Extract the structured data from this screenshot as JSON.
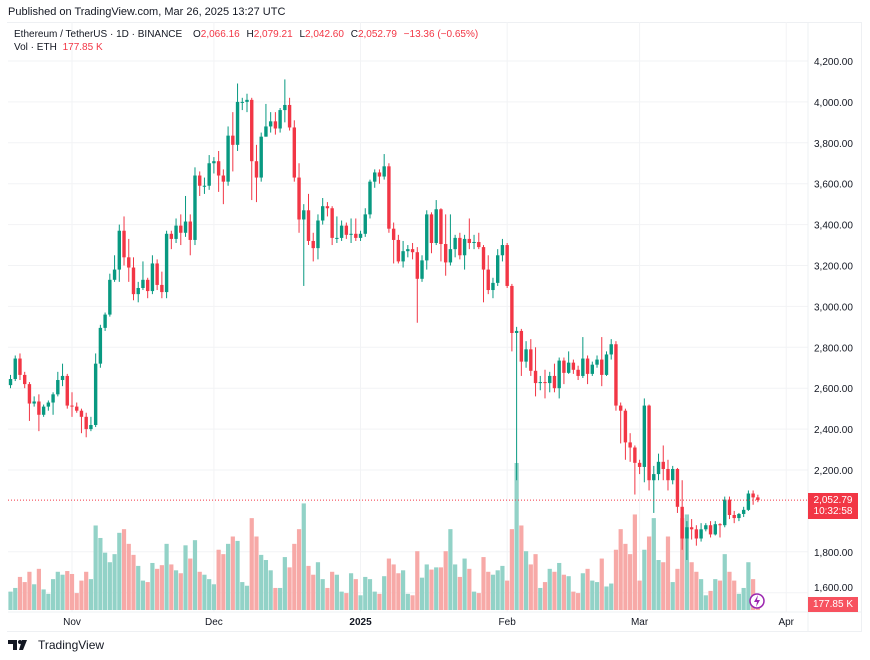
{
  "published": "Published on TradingView.com, Mar 26, 2025 13:27 UTC",
  "legend": {
    "symbol": "Ethereum / TetherUS · 1D · BINANCE",
    "open_label": "O",
    "open": "2,066.16",
    "high_label": "H",
    "high": "2,079.21",
    "low_label": "L",
    "low": "2,042.60",
    "close_label": "C",
    "close": "2,052.79",
    "change": "−13.36 (−0.65%)",
    "vol_label": "Vol · ETH",
    "vol": "177.85 K"
  },
  "price_badge": {
    "price": "2,052.79",
    "countdown": "10:32:58"
  },
  "volume_badge": "177.85 K",
  "footer_brand": "TradingView",
  "colors": {
    "up": "#089981",
    "down": "#f23645",
    "up_volume": "#92d2c7",
    "down_volume": "#f7a9a7",
    "indicator": "#9c27b0"
  },
  "chart_data": {
    "type": "candlestick",
    "title": "Ethereum / TetherUS · 1D · BINANCE",
    "y_ticks": [
      "4,200.00",
      "4,000.00",
      "3,800.00",
      "3,600.00",
      "3,400.00",
      "3,200.00",
      "3,000.00",
      "2,800.00",
      "2,600.00",
      "2,400.00",
      "2,200.00",
      "1,800.00",
      "1,600.00"
    ],
    "y_tick_values": [
      4200,
      4000,
      3800,
      3600,
      3400,
      3200,
      3000,
      2800,
      2600,
      2400,
      2200,
      1800,
      1600
    ],
    "ylim": [
      1600,
      4200
    ],
    "x_ticks": [
      {
        "label": "Nov",
        "date": "2024-11-01",
        "bold": false
      },
      {
        "label": "Dec",
        "date": "2024-12-01",
        "bold": false
      },
      {
        "label": "2025",
        "date": "2025-01-01",
        "bold": true
      },
      {
        "label": "Feb",
        "date": "2025-02-01",
        "bold": false
      },
      {
        "label": "Mar",
        "date": "2025-03-01",
        "bold": false
      },
      {
        "label": "Apr",
        "date": "2025-04-01",
        "bold": false
      }
    ],
    "current_price": 2052.79,
    "columns": [
      "date",
      "open",
      "high",
      "low",
      "close",
      "volume_k"
    ],
    "candles": [
      [
        "2024-10-19",
        2615,
        2665,
        2600,
        2645,
        250
      ],
      [
        "2024-10-20",
        2645,
        2760,
        2635,
        2745,
        300
      ],
      [
        "2024-10-21",
        2745,
        2770,
        2640,
        2665,
        450
      ],
      [
        "2024-10-22",
        2665,
        2680,
        2600,
        2620,
        380
      ],
      [
        "2024-10-23",
        2620,
        2630,
        2440,
        2525,
        520
      ],
      [
        "2024-10-24",
        2525,
        2560,
        2510,
        2535,
        350
      ],
      [
        "2024-10-25",
        2535,
        2570,
        2390,
        2470,
        560
      ],
      [
        "2024-10-26",
        2470,
        2520,
        2460,
        2510,
        280
      ],
      [
        "2024-10-27",
        2510,
        2540,
        2490,
        2530,
        220
      ],
      [
        "2024-10-28",
        2530,
        2580,
        2470,
        2570,
        420
      ],
      [
        "2024-10-29",
        2570,
        2680,
        2560,
        2640,
        520
      ],
      [
        "2024-10-30",
        2640,
        2720,
        2610,
        2660,
        480
      ],
      [
        "2024-10-31",
        2660,
        2670,
        2500,
        2515,
        530
      ],
      [
        "2024-11-01",
        2515,
        2580,
        2460,
        2510,
        490
      ],
      [
        "2024-11-02",
        2510,
        2530,
        2480,
        2490,
        230
      ],
      [
        "2024-11-03",
        2490,
        2500,
        2380,
        2460,
        400
      ],
      [
        "2024-11-04",
        2460,
        2480,
        2360,
        2400,
        520
      ],
      [
        "2024-11-05",
        2400,
        2460,
        2390,
        2420,
        420
      ],
      [
        "2024-11-06",
        2420,
        2770,
        2410,
        2720,
        1150
      ],
      [
        "2024-11-07",
        2720,
        2910,
        2700,
        2895,
        980
      ],
      [
        "2024-11-08",
        2895,
        2970,
        2880,
        2960,
        780
      ],
      [
        "2024-11-09",
        2960,
        3160,
        2950,
        3130,
        650
      ],
      [
        "2024-11-10",
        3130,
        3250,
        3120,
        3180,
        760
      ],
      [
        "2024-11-11",
        3180,
        3400,
        3120,
        3370,
        1050
      ],
      [
        "2024-11-12",
        3370,
        3440,
        3200,
        3240,
        1100
      ],
      [
        "2024-11-13",
        3240,
        3330,
        3120,
        3190,
        900
      ],
      [
        "2024-11-14",
        3190,
        3240,
        3030,
        3060,
        750
      ],
      [
        "2024-11-15",
        3060,
        3120,
        3020,
        3090,
        600
      ],
      [
        "2024-11-16",
        3090,
        3220,
        3080,
        3130,
        400
      ],
      [
        "2024-11-17",
        3130,
        3140,
        3040,
        3075,
        380
      ],
      [
        "2024-11-18",
        3075,
        3250,
        3060,
        3210,
        640
      ],
      [
        "2024-11-19",
        3210,
        3230,
        3080,
        3105,
        560
      ],
      [
        "2024-11-20",
        3105,
        3170,
        3040,
        3070,
        610
      ],
      [
        "2024-11-21",
        3070,
        3370,
        3040,
        3355,
        900
      ],
      [
        "2024-11-22",
        3355,
        3370,
        3280,
        3330,
        620
      ],
      [
        "2024-11-23",
        3330,
        3430,
        3310,
        3395,
        540
      ],
      [
        "2024-11-24",
        3395,
        3450,
        3300,
        3360,
        500
      ],
      [
        "2024-11-25",
        3360,
        3540,
        3340,
        3415,
        880
      ],
      [
        "2024-11-26",
        3415,
        3450,
        3250,
        3325,
        700
      ],
      [
        "2024-11-27",
        3325,
        3680,
        3300,
        3640,
        950
      ],
      [
        "2024-11-28",
        3640,
        3660,
        3540,
        3590,
        520
      ],
      [
        "2024-11-29",
        3590,
        3630,
        3550,
        3590,
        480
      ],
      [
        "2024-11-30",
        3590,
        3740,
        3570,
        3700,
        420
      ],
      [
        "2024-12-01",
        3700,
        3730,
        3650,
        3710,
        350
      ],
      [
        "2024-12-02",
        3710,
        3760,
        3560,
        3640,
        820
      ],
      [
        "2024-12-03",
        3640,
        3670,
        3500,
        3610,
        760
      ],
      [
        "2024-12-04",
        3610,
        3880,
        3590,
        3835,
        900
      ],
      [
        "2024-12-05",
        3835,
        3950,
        3660,
        3790,
        1000
      ],
      [
        "2024-12-06",
        3790,
        4090,
        3760,
        4000,
        940
      ],
      [
        "2024-12-07",
        4000,
        4020,
        3960,
        4000,
        380
      ],
      [
        "2024-12-08",
        4000,
        4040,
        3950,
        4010,
        330
      ],
      [
        "2024-12-09",
        4010,
        4020,
        3520,
        3710,
        1250
      ],
      [
        "2024-12-10",
        3710,
        3790,
        3510,
        3630,
        1000
      ],
      [
        "2024-12-11",
        3630,
        3850,
        3610,
        3830,
        750
      ],
      [
        "2024-12-12",
        3830,
        3990,
        3830,
        3880,
        680
      ],
      [
        "2024-12-13",
        3880,
        3950,
        3850,
        3905,
        540
      ],
      [
        "2024-12-14",
        3905,
        3950,
        3840,
        3870,
        300
      ],
      [
        "2024-12-15",
        3870,
        3970,
        3850,
        3960,
        300
      ],
      [
        "2024-12-16",
        3960,
        4110,
        3900,
        3985,
        720
      ],
      [
        "2024-12-17",
        3985,
        4020,
        3860,
        3875,
        580
      ],
      [
        "2024-12-18",
        3875,
        3910,
        3610,
        3630,
        900
      ],
      [
        "2024-12-19",
        3630,
        3700,
        3360,
        3425,
        1100
      ],
      [
        "2024-12-20",
        3425,
        3500,
        3100,
        3470,
        1450
      ],
      [
        "2024-12-21",
        3470,
        3550,
        3300,
        3320,
        600
      ],
      [
        "2024-12-22",
        3320,
        3360,
        3220,
        3285,
        480
      ],
      [
        "2024-12-23",
        3285,
        3450,
        3230,
        3420,
        650
      ],
      [
        "2024-12-24",
        3420,
        3530,
        3400,
        3490,
        420
      ],
      [
        "2024-12-25",
        3490,
        3510,
        3440,
        3480,
        300
      ],
      [
        "2024-12-26",
        3480,
        3490,
        3300,
        3335,
        520
      ],
      [
        "2024-12-27",
        3335,
        3440,
        3310,
        3335,
        480
      ],
      [
        "2024-12-28",
        3335,
        3420,
        3320,
        3395,
        250
      ],
      [
        "2024-12-29",
        3395,
        3410,
        3330,
        3350,
        230
      ],
      [
        "2024-12-30",
        3350,
        3430,
        3310,
        3355,
        500
      ],
      [
        "2024-12-31",
        3355,
        3430,
        3320,
        3335,
        420
      ],
      [
        "2025-01-01",
        3335,
        3370,
        3320,
        3355,
        200
      ],
      [
        "2025-01-02",
        3355,
        3480,
        3340,
        3450,
        450
      ],
      [
        "2025-01-03",
        3450,
        3620,
        3430,
        3610,
        420
      ],
      [
        "2025-01-04",
        3610,
        3670,
        3580,
        3655,
        250
      ],
      [
        "2025-01-05",
        3655,
        3670,
        3600,
        3635,
        220
      ],
      [
        "2025-01-06",
        3635,
        3745,
        3620,
        3685,
        460
      ],
      [
        "2025-01-07",
        3685,
        3700,
        3360,
        3380,
        700
      ],
      [
        "2025-01-08",
        3380,
        3410,
        3210,
        3325,
        620
      ],
      [
        "2025-01-09",
        3325,
        3350,
        3210,
        3220,
        500
      ],
      [
        "2025-01-10",
        3220,
        3320,
        3190,
        3270,
        540
      ],
      [
        "2025-01-11",
        3270,
        3300,
        3240,
        3280,
        220
      ],
      [
        "2025-01-12",
        3280,
        3310,
        3230,
        3265,
        200
      ],
      [
        "2025-01-13",
        3265,
        3290,
        2920,
        3135,
        800
      ],
      [
        "2025-01-14",
        3135,
        3250,
        3120,
        3225,
        440
      ],
      [
        "2025-01-15",
        3225,
        3470,
        3180,
        3450,
        620
      ],
      [
        "2025-01-16",
        3450,
        3460,
        3260,
        3310,
        550
      ],
      [
        "2025-01-17",
        3310,
        3520,
        3300,
        3475,
        580
      ],
      [
        "2025-01-18",
        3475,
        3480,
        3220,
        3305,
        580
      ],
      [
        "2025-01-19",
        3305,
        3450,
        3150,
        3215,
        800
      ],
      [
        "2025-01-20",
        3215,
        3450,
        3200,
        3280,
        1100
      ],
      [
        "2025-01-21",
        3280,
        3350,
        3240,
        3335,
        620
      ],
      [
        "2025-01-22",
        3335,
        3360,
        3230,
        3250,
        450
      ],
      [
        "2025-01-23",
        3250,
        3350,
        3180,
        3330,
        700
      ],
      [
        "2025-01-24",
        3330,
        3430,
        3280,
        3310,
        560
      ],
      [
        "2025-01-25",
        3310,
        3350,
        3280,
        3315,
        250
      ],
      [
        "2025-01-26",
        3315,
        3360,
        3280,
        3290,
        230
      ],
      [
        "2025-01-27",
        3290,
        3300,
        3020,
        3180,
        720
      ],
      [
        "2025-01-28",
        3180,
        3250,
        3060,
        3080,
        520
      ],
      [
        "2025-01-29",
        3080,
        3140,
        3040,
        3115,
        480
      ],
      [
        "2025-01-30",
        3115,
        3280,
        3100,
        3250,
        540
      ],
      [
        "2025-01-31",
        3250,
        3330,
        3220,
        3300,
        600
      ],
      [
        "2025-02-01",
        3300,
        3310,
        3090,
        3100,
        400
      ],
      [
        "2025-02-02",
        3100,
        3110,
        2780,
        2870,
        1100
      ],
      [
        "2025-02-03",
        2870,
        2900,
        2150,
        2880,
        2000
      ],
      [
        "2025-02-04",
        2880,
        2890,
        2660,
        2730,
        1150
      ],
      [
        "2025-02-05",
        2730,
        2830,
        2700,
        2790,
        800
      ],
      [
        "2025-02-06",
        2790,
        2840,
        2660,
        2685,
        620
      ],
      [
        "2025-02-07",
        2685,
        2800,
        2560,
        2625,
        760
      ],
      [
        "2025-02-08",
        2625,
        2660,
        2590,
        2630,
        300
      ],
      [
        "2025-02-09",
        2630,
        2690,
        2550,
        2625,
        380
      ],
      [
        "2025-02-10",
        2625,
        2680,
        2580,
        2660,
        560
      ],
      [
        "2025-02-11",
        2660,
        2720,
        2580,
        2600,
        520
      ],
      [
        "2025-02-12",
        2600,
        2750,
        2550,
        2735,
        640
      ],
      [
        "2025-02-13",
        2735,
        2750,
        2620,
        2675,
        480
      ],
      [
        "2025-02-14",
        2675,
        2780,
        2670,
        2725,
        460
      ],
      [
        "2025-02-15",
        2725,
        2740,
        2670,
        2690,
        250
      ],
      [
        "2025-02-16",
        2690,
        2710,
        2640,
        2660,
        230
      ],
      [
        "2025-02-17",
        2660,
        2850,
        2650,
        2745,
        500
      ],
      [
        "2025-02-18",
        2745,
        2760,
        2620,
        2670,
        560
      ],
      [
        "2025-02-19",
        2670,
        2730,
        2660,
        2715,
        400
      ],
      [
        "2025-02-20",
        2715,
        2760,
        2700,
        2740,
        380
      ],
      [
        "2025-02-21",
        2740,
        2850,
        2610,
        2665,
        700
      ],
      [
        "2025-02-22",
        2665,
        2780,
        2660,
        2765,
        320
      ],
      [
        "2025-02-23",
        2765,
        2840,
        2740,
        2815,
        360
      ],
      [
        "2025-02-24",
        2815,
        2830,
        2490,
        2515,
        820
      ],
      [
        "2025-02-25",
        2515,
        2530,
        2330,
        2490,
        1100
      ],
      [
        "2025-02-26",
        2490,
        2500,
        2250,
        2335,
        900
      ],
      [
        "2025-02-27",
        2335,
        2380,
        2240,
        2310,
        760
      ],
      [
        "2025-02-28",
        2310,
        2320,
        2080,
        2235,
        1300
      ],
      [
        "2025-03-01",
        2235,
        2250,
        2180,
        2215,
        400
      ],
      [
        "2025-03-02",
        2215,
        2550,
        2140,
        2515,
        820
      ],
      [
        "2025-03-03",
        2515,
        2520,
        2100,
        2150,
        1000
      ],
      [
        "2025-03-04",
        2150,
        2220,
        1990,
        2180,
        1250
      ],
      [
        "2025-03-05",
        2180,
        2280,
        2150,
        2240,
        680
      ],
      [
        "2025-03-06",
        2240,
        2320,
        2150,
        2205,
        650
      ],
      [
        "2025-03-07",
        2205,
        2250,
        2100,
        2150,
        1000
      ],
      [
        "2025-03-08",
        2150,
        2220,
        2130,
        2205,
        380
      ],
      [
        "2025-03-09",
        2205,
        2210,
        1990,
        2020,
        560
      ],
      [
        "2025-03-10",
        2020,
        2150,
        1810,
        1865,
        1250
      ],
      [
        "2025-03-11",
        1865,
        1950,
        1760,
        1920,
        1300
      ],
      [
        "2025-03-12",
        1920,
        1960,
        1860,
        1910,
        650
      ],
      [
        "2025-03-13",
        1910,
        1930,
        1830,
        1865,
        520
      ],
      [
        "2025-03-14",
        1865,
        1940,
        1850,
        1910,
        420
      ],
      [
        "2025-03-15",
        1910,
        1940,
        1900,
        1930,
        200
      ],
      [
        "2025-03-16",
        1930,
        1950,
        1870,
        1885,
        260
      ],
      [
        "2025-03-17",
        1885,
        1950,
        1880,
        1935,
        420
      ],
      [
        "2025-03-18",
        1935,
        1940,
        1870,
        1930,
        400
      ],
      [
        "2025-03-19",
        1930,
        2070,
        1920,
        2055,
        760
      ],
      [
        "2025-03-20",
        2055,
        2070,
        1960,
        1980,
        520
      ],
      [
        "2025-03-21",
        1980,
        2000,
        1940,
        1965,
        400
      ],
      [
        "2025-03-22",
        1965,
        1990,
        1950,
        1985,
        220
      ],
      [
        "2025-03-23",
        1985,
        2020,
        1970,
        2005,
        300
      ],
      [
        "2025-03-24",
        2005,
        2100,
        2000,
        2085,
        650
      ],
      [
        "2025-03-25",
        2085,
        2100,
        2030,
        2066,
        420
      ],
      [
        "2025-03-26",
        2066.16,
        2079.21,
        2042.6,
        2052.79,
        177.85
      ]
    ]
  }
}
